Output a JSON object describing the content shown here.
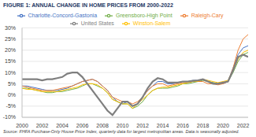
{
  "chart_data": {
    "type": "line",
    "title": "FIGURE 1: ANNUAL CHANGE IN HOME PRICES FROM 2000-2022",
    "source": "Source: FHFA Purchase-Only House Price Index, quarterly data for largest metropolitan areas. Data is seasonally adjusted.",
    "x": [
      2000,
      2000.5,
      2001,
      2001.5,
      2002,
      2002.5,
      2003,
      2003.5,
      2004,
      2004.5,
      2005,
      2005.5,
      2006,
      2006.5,
      2007,
      2007.5,
      2008,
      2008.5,
      2009,
      2009.5,
      2010,
      2010.5,
      2011,
      2011.5,
      2012,
      2012.5,
      2013,
      2013.5,
      2014,
      2014.5,
      2015,
      2015.5,
      2016,
      2016.5,
      2017,
      2017.5,
      2018,
      2018.5,
      2019,
      2019.5,
      2020,
      2020.5,
      2021,
      2021.5,
      2022,
      2022.5
    ],
    "series": [
      {
        "name": "Charlotte-Concord-Gastonia",
        "color": "#4472c4",
        "values": [
          4,
          4,
          3.5,
          3,
          2.5,
          2,
          2,
          2,
          2.5,
          3,
          4,
          5,
          6,
          6.5,
          7,
          6,
          4,
          2,
          -1,
          -3,
          -4,
          -3,
          -5,
          -4,
          -1,
          2,
          4,
          6,
          6,
          5,
          5,
          5.5,
          6,
          6,
          6.5,
          6.5,
          7,
          6,
          5.5,
          5,
          5,
          6,
          12,
          18,
          21,
          22
        ]
      },
      {
        "name": "Greensboro-High Point",
        "color": "#70ad47",
        "values": [
          3,
          3,
          2.5,
          2,
          1.5,
          1,
          1,
          1.5,
          1.5,
          2,
          2.5,
          3,
          4,
          5,
          5,
          4,
          3,
          1,
          -2,
          -3,
          -4,
          -4,
          -6,
          -5,
          -3,
          0,
          2,
          3,
          3,
          3,
          3.5,
          4,
          5,
          5,
          5.5,
          6,
          6.5,
          6,
          5.5,
          5,
          5.5,
          6,
          10,
          15,
          18,
          19
        ]
      },
      {
        "name": "Raleigh-Cary",
        "color": "#ed7d31",
        "values": [
          4,
          3.5,
          3,
          2.5,
          2,
          2,
          2,
          2.5,
          3,
          3.5,
          4,
          5,
          6,
          6.5,
          7,
          6,
          4,
          2,
          -1,
          -2,
          -3,
          -3,
          -4,
          -3,
          -1,
          2,
          4,
          5,
          5,
          4,
          4.5,
          5,
          5.5,
          5.5,
          6,
          6,
          6,
          5,
          5,
          4.5,
          5,
          6,
          12,
          20,
          25,
          27
        ]
      },
      {
        "name": "Winston-Salem",
        "color": "#ffc000",
        "values": [
          3,
          2.5,
          2.5,
          2,
          1.5,
          1.5,
          1.5,
          1.5,
          2,
          2.5,
          3,
          3.5,
          4.5,
          5,
          5,
          4.5,
          3,
          1,
          -2,
          -3,
          -4,
          -4,
          -6,
          -4,
          -2,
          0,
          2,
          3,
          3.5,
          3.5,
          4,
          4.5,
          5,
          5.5,
          6,
          6,
          7,
          6.5,
          6,
          5.5,
          6,
          6.5,
          11,
          16,
          19,
          20
        ]
      },
      {
        "name": "United States",
        "color": "#7f7f7f",
        "values": [
          7,
          7,
          7,
          7,
          6.5,
          7,
          7,
          7.5,
          8,
          9.5,
          10,
          10,
          8,
          5,
          2,
          -1,
          -4,
          -7,
          -9,
          -6,
          -3,
          -3,
          -5,
          -4,
          -1,
          3,
          6,
          7.5,
          7,
          5.5,
          5.5,
          5.5,
          6,
          6,
          6.3,
          6.5,
          7,
          6,
          5,
          5,
          5.5,
          6,
          11,
          17,
          18,
          17
        ]
      }
    ],
    "xlim": [
      2000,
      2022.5
    ],
    "xticks": [
      2000,
      2002,
      2004,
      2006,
      2008,
      2010,
      2012,
      2014,
      2016,
      2018,
      2020,
      2022
    ],
    "ylim": [
      -10,
      30
    ],
    "yticks": [
      {
        "value": -10,
        "label": "-10%"
      },
      {
        "value": -5,
        "label": "-5%"
      },
      {
        "value": 0,
        "label": "0%"
      },
      {
        "value": 5,
        "label": "5%"
      },
      {
        "value": 10,
        "label": "10%"
      },
      {
        "value": 15,
        "label": "15%"
      },
      {
        "value": 20,
        "label": "20%"
      },
      {
        "value": 25,
        "label": "25%"
      },
      {
        "value": 30,
        "label": "30%"
      }
    ],
    "grid": true,
    "legend": "top"
  }
}
